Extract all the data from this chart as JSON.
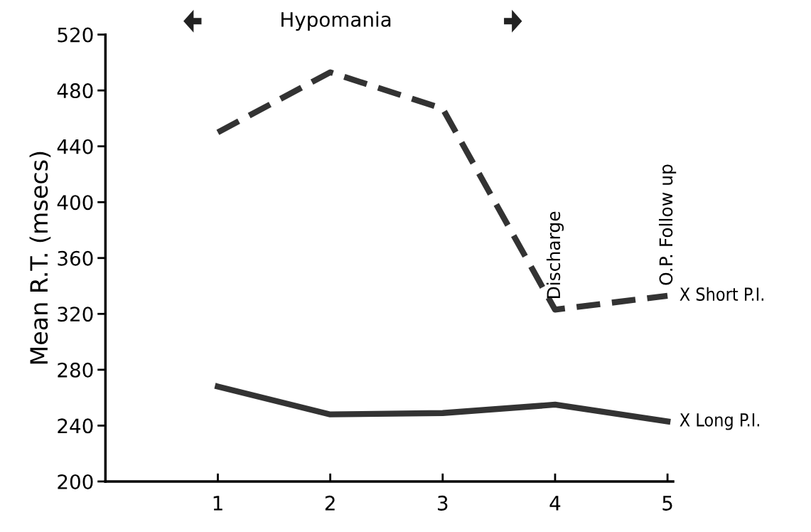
{
  "chart_data": {
    "type": "line",
    "ylabel": "Mean R.T. (msecs)",
    "x": [
      1,
      2,
      3,
      4,
      5
    ],
    "xlim": [
      0,
      5.05
    ],
    "xticks": [
      1,
      2,
      3,
      4,
      5
    ],
    "ylim": [
      200,
      520
    ],
    "yticks": [
      200,
      240,
      280,
      320,
      360,
      400,
      440,
      480,
      520
    ],
    "series": [
      {
        "name": "X Short P.I.",
        "color": "#333333",
        "line_style": "dashed",
        "values": [
          450,
          493,
          467,
          323,
          333
        ]
      },
      {
        "name": "X Long P.I.",
        "color": "#333333",
        "line_style": "solid",
        "values": [
          268,
          248,
          249,
          255,
          243
        ]
      }
    ],
    "annotations": [
      "Hypomania",
      {
        "text": "Discharge",
        "x": 4,
        "y": 323
      },
      {
        "text": "O.P. Follow up",
        "x": 5,
        "y": 333
      }
    ],
    "grid": false,
    "legend": false
  }
}
